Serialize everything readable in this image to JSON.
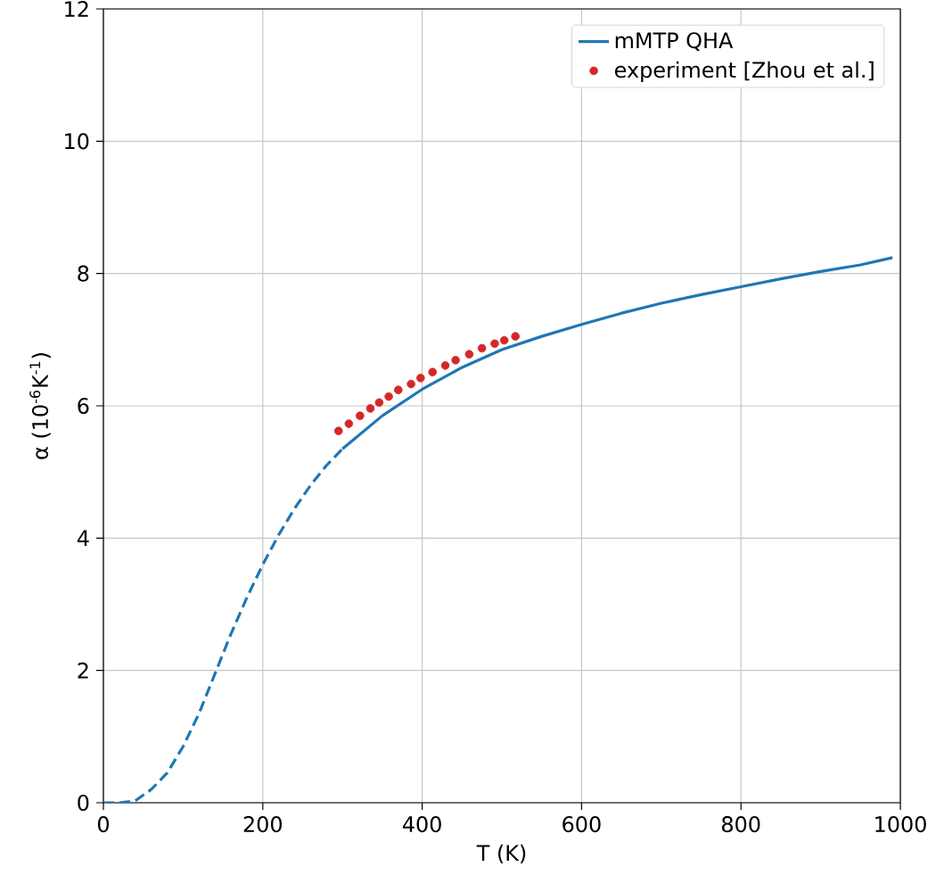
{
  "chart_data": {
    "type": "line",
    "xlabel": "T (K)",
    "ylabel": "α (10$^{-6}$K$^{-1}$)",
    "xlim": [
      0,
      1000
    ],
    "ylim": [
      0,
      12
    ],
    "xticks": [
      0,
      200,
      400,
      600,
      800,
      1000
    ],
    "yticks": [
      0,
      2,
      4,
      6,
      8,
      10,
      12
    ],
    "grid": true,
    "legend": "top right",
    "series": [
      {
        "line_style": "dashed",
        "color": "#1f77b4",
        "x": [
          0,
          20,
          40,
          60,
          80,
          100,
          120,
          140,
          160,
          180,
          200,
          220,
          240,
          260,
          280,
          300
        ],
        "values": [
          0,
          0,
          0.03,
          0.2,
          0.45,
          0.85,
          1.35,
          1.95,
          2.55,
          3.1,
          3.6,
          4.05,
          4.45,
          4.8,
          5.1,
          5.35
        ]
      },
      {
        "type": "line",
        "name": "mMTP QHA",
        "line_style": "solid",
        "color": "#1f77b4",
        "x": [
          300,
          350,
          400,
          450,
          500,
          550,
          600,
          650,
          700,
          750,
          800,
          850,
          900,
          950,
          990
        ],
        "values": [
          5.35,
          5.85,
          6.25,
          6.58,
          6.85,
          7.05,
          7.23,
          7.4,
          7.55,
          7.68,
          7.8,
          7.92,
          8.03,
          8.13,
          8.24
        ]
      },
      {
        "type": "scatter",
        "name": "experiment [Zhou et al.]",
        "marker": "circle",
        "color": "#d62728",
        "x": [
          295,
          308,
          322,
          335,
          346,
          358,
          370,
          386,
          398,
          413,
          429,
          442,
          459,
          475,
          491,
          503,
          517
        ],
        "values": [
          5.62,
          5.73,
          5.85,
          5.96,
          6.05,
          6.14,
          6.24,
          6.33,
          6.42,
          6.51,
          6.61,
          6.69,
          6.78,
          6.87,
          6.94,
          6.99,
          7.05
        ]
      }
    ]
  }
}
